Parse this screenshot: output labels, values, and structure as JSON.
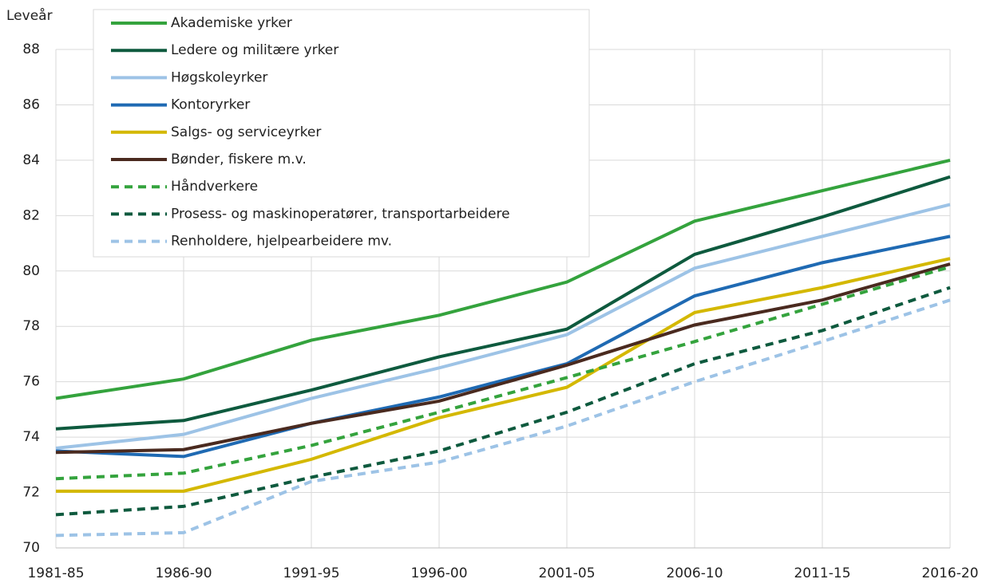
{
  "chart_data": {
    "type": "line",
    "y_label": "Leveår",
    "categories": [
      "1981-85",
      "1986-90",
      "1991-95",
      "1996-00",
      "2001-05",
      "2006-10",
      "2011-15",
      "2016-20"
    ],
    "ylim": [
      70,
      88
    ],
    "yticks": [
      70,
      72,
      74,
      76,
      78,
      80,
      82,
      84,
      86,
      88
    ],
    "grid": true,
    "legend": "top-left",
    "series": [
      {
        "name": "Akademiske yrker",
        "color": "#34a33d",
        "dashed": false,
        "values": [
          75.4,
          76.1,
          77.5,
          78.4,
          79.6,
          81.8,
          82.9,
          84.0
        ]
      },
      {
        "name": "Ledere og militære yrker",
        "color": "#0e5a3e",
        "dashed": false,
        "values": [
          74.3,
          74.6,
          75.7,
          76.9,
          77.9,
          80.6,
          81.95,
          83.4
        ]
      },
      {
        "name": "Høgskoleyrker",
        "color": "#9dc3e6",
        "dashed": false,
        "values": [
          73.6,
          74.1,
          75.4,
          76.5,
          77.7,
          80.1,
          81.25,
          82.4
        ]
      },
      {
        "name": "Kontoryrker",
        "color": "#1f6ab3",
        "dashed": false,
        "values": [
          73.5,
          73.3,
          74.5,
          75.45,
          76.65,
          79.1,
          80.3,
          81.25
        ]
      },
      {
        "name": "Salgs- og serviceyrker",
        "color": "#d4b800",
        "dashed": false,
        "values": [
          72.05,
          72.05,
          73.2,
          74.7,
          75.8,
          78.5,
          79.4,
          80.45
        ]
      },
      {
        "name": "Bønder, fiskere m.v.",
        "color": "#4a2a1f",
        "dashed": false,
        "values": [
          73.45,
          73.55,
          74.5,
          75.3,
          76.6,
          78.05,
          78.95,
          80.25
        ]
      },
      {
        "name": "Håndverkere",
        "color": "#34a33d",
        "dashed": true,
        "values": [
          72.5,
          72.7,
          73.7,
          74.9,
          76.15,
          77.45,
          78.8,
          80.15
        ]
      },
      {
        "name": "Prosess- og maskinoperatører, transportarbeidere",
        "color": "#0e5a3e",
        "dashed": true,
        "values": [
          71.2,
          71.5,
          72.55,
          73.5,
          74.9,
          76.65,
          77.85,
          79.4
        ]
      },
      {
        "name": "Renholdere, hjelpearbeidere mv.",
        "color": "#9dc3e6",
        "dashed": true,
        "values": [
          70.45,
          70.55,
          72.4,
          73.1,
          74.4,
          76.0,
          77.45,
          78.95
        ]
      }
    ]
  }
}
